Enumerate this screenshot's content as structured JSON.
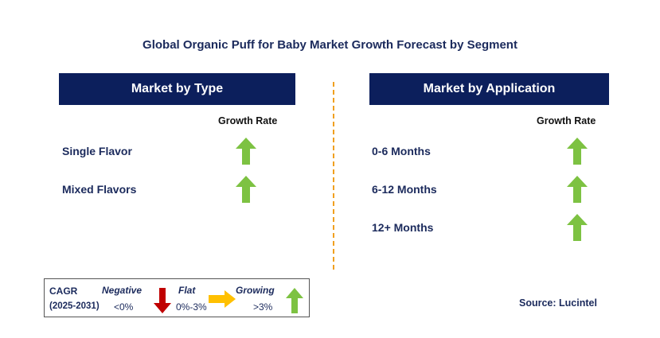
{
  "title": "Global Organic Puff for Baby Market Growth Forecast by Segment",
  "left_panel": {
    "header": "Market by Type",
    "growth_rate_label": "Growth Rate",
    "rows": [
      {
        "label": "Single Flavor",
        "trend": "growing"
      },
      {
        "label": "Mixed Flavors",
        "trend": "growing"
      }
    ]
  },
  "right_panel": {
    "header": "Market by Application",
    "growth_rate_label": "Growth Rate",
    "rows": [
      {
        "label": "0-6 Months",
        "trend": "growing"
      },
      {
        "label": "6-12 Months",
        "trend": "growing"
      },
      {
        "label": "12+ Months",
        "trend": "growing"
      }
    ]
  },
  "legend": {
    "cagr_label": "CAGR",
    "period": "(2025-2031)",
    "negative_label": "Negative",
    "negative_range": "<0%",
    "flat_label": "Flat",
    "flat_range": "0%-3%",
    "growing_label": "Growing",
    "growing_range": ">3%"
  },
  "source": "Source: Lucintel",
  "colors": {
    "header_bg": "#0c1f5c",
    "title_text": "#1b2a5c",
    "up_arrow": "#7dc242",
    "down_arrow": "#c00000",
    "flat_arrow": "#ffc000",
    "divider": "#f0a020"
  },
  "icons": {
    "growing": "up-arrow-icon",
    "negative": "down-arrow-icon",
    "flat": "right-arrow-icon"
  }
}
